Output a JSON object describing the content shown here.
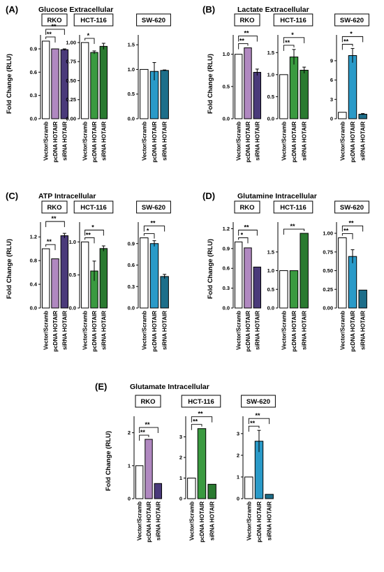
{
  "chart_data": [
    {
      "type": "bar",
      "panel": "(A)",
      "title": "Glucose Extracellular",
      "ylabel": "Fold Change (RLU)",
      "categories": [
        "Vector/Scramb",
        "pcDNA HOTAIR",
        "siRNA HOTAIR"
      ],
      "subplots": [
        {
          "name": "RKO",
          "values": [
            1.0,
            0.9,
            0.89
          ],
          "errors": [
            0,
            0,
            0.01
          ],
          "ylim": [
            0,
            1.08
          ],
          "yticks": [
            "0.0",
            "0.3",
            "0.6",
            "0.9"
          ],
          "ytick_values": [
            0.0,
            0.3,
            0.6,
            0.9
          ],
          "sig": [
            {
              "from": 0,
              "to": 1,
              "label": "**"
            },
            {
              "from": 0,
              "to": 2,
              "label": "**"
            }
          ],
          "colors": [
            "#ffffff",
            "#b088c0",
            "#4a3a7a"
          ]
        },
        {
          "name": "HCT-116",
          "values": [
            1.0,
            0.87,
            0.95
          ],
          "errors": [
            0,
            0.02,
            0.04
          ],
          "ylim": [
            0,
            1.1
          ],
          "yticks": [
            "0.00",
            "0.25",
            "0.50",
            "0.75",
            "1.00"
          ],
          "ytick_values": [
            0.0,
            0.25,
            0.5,
            0.75,
            1.0
          ],
          "sig": [
            {
              "from": 0,
              "to": 1,
              "label": "*"
            }
          ],
          "colors": [
            "#ffffff",
            "#3a9a40",
            "#2a7a30"
          ]
        },
        {
          "name": "SW-620",
          "values": [
            1.0,
            0.96,
            0.98
          ],
          "errors": [
            0,
            0.18,
            0.01
          ],
          "ylim": [
            0,
            1.7
          ],
          "yticks": [
            "0.0",
            "0.5",
            "1.0",
            "1.5"
          ],
          "ytick_values": [
            0.0,
            0.5,
            1.0,
            1.5
          ],
          "sig": [],
          "colors": [
            "#ffffff",
            "#2a9ac8",
            "#1d6e8a"
          ]
        }
      ]
    },
    {
      "type": "bar",
      "panel": "(B)",
      "title": "Lactate Extracellular",
      "ylabel": "Fold Change (RLU)",
      "categories": [
        "Vector/Scramb",
        "pcDNA HOTAIR",
        "siRNA HOTAIR"
      ],
      "subplots": [
        {
          "name": "RKO",
          "values": [
            1.0,
            1.1,
            0.72
          ],
          "errors": [
            0,
            0,
            0.05
          ],
          "ylim": [
            0,
            1.3
          ],
          "yticks": [
            "0.0",
            "0.5",
            "1.0"
          ],
          "ytick_values": [
            0.0,
            0.5,
            1.0
          ],
          "sig": [
            {
              "from": 0,
              "to": 1,
              "label": "**"
            },
            {
              "from": 0,
              "to": 2,
              "label": "**"
            }
          ],
          "colors": [
            "#ffffff",
            "#b088c0",
            "#4a3a7a"
          ]
        },
        {
          "name": "HCT-116",
          "values": [
            1.0,
            1.4,
            1.1
          ],
          "errors": [
            0,
            0.17,
            0.07
          ],
          "ylim": [
            0,
            1.9
          ],
          "yticks": [
            "0.0",
            "0.5",
            "1.0",
            "1.5"
          ],
          "ytick_values": [
            0.0,
            0.5,
            1.0,
            1.5
          ],
          "sig": [
            {
              "from": 0,
              "to": 1,
              "label": "**"
            },
            {
              "from": 0,
              "to": 2,
              "label": "*"
            }
          ],
          "colors": [
            "#ffffff",
            "#3a9a40",
            "#2a7a30"
          ]
        },
        {
          "name": "SW-620",
          "values": [
            1.0,
            9.8,
            0.7
          ],
          "errors": [
            0,
            1.1,
            0.1
          ],
          "ylim": [
            0,
            13
          ],
          "yticks": [
            "0",
            "3",
            "6",
            "9"
          ],
          "ytick_values": [
            0,
            3,
            6,
            9
          ],
          "sig": [
            {
              "from": 0,
              "to": 1,
              "label": "**"
            },
            {
              "from": 0,
              "to": 2,
              "label": "*"
            }
          ],
          "colors": [
            "#ffffff",
            "#2a9ac8",
            "#1d6e8a"
          ]
        }
      ]
    },
    {
      "type": "bar",
      "panel": "(C)",
      "title": "ATP Intracellular",
      "ylabel": "Fold Change (RLU)",
      "categories": [
        "Vector/Scramb",
        "pcDNA HOTAIR",
        "siRNA HOTAIR"
      ],
      "subplots": [
        {
          "name": "RKO",
          "values": [
            1.0,
            0.83,
            1.22
          ],
          "errors": [
            0,
            0,
            0.04
          ],
          "ylim": [
            0,
            1.45
          ],
          "yticks": [
            "0.0",
            "0.4",
            "0.8",
            "1.2"
          ],
          "ytick_values": [
            0.0,
            0.4,
            0.8,
            1.2
          ],
          "sig": [
            {
              "from": 0,
              "to": 1,
              "label": "**"
            },
            {
              "from": 0,
              "to": 2,
              "label": "**"
            }
          ],
          "colors": [
            "#ffffff",
            "#b088c0",
            "#4a3a7a"
          ]
        },
        {
          "name": "HCT-116",
          "values": [
            1.0,
            0.56,
            0.9
          ],
          "errors": [
            0,
            0.15,
            0.04
          ],
          "ylim": [
            0,
            1.3
          ],
          "yticks": [
            "0.0",
            "0.5",
            "1.0"
          ],
          "ytick_values": [
            0.0,
            0.5,
            1.0
          ],
          "sig": [
            {
              "from": 0,
              "to": 1,
              "label": "**"
            },
            {
              "from": 0,
              "to": 2,
              "label": "*"
            }
          ],
          "colors": [
            "#ffffff",
            "#3a9a40",
            "#2a7a30"
          ]
        },
        {
          "name": "SW-620",
          "values": [
            0.98,
            0.9,
            0.44
          ],
          "errors": [
            0,
            0.04,
            0.03
          ],
          "ylim": [
            0,
            1.2
          ],
          "yticks": [
            "0.0",
            "0.3",
            "0.6",
            "0.9"
          ],
          "ytick_values": [
            0.0,
            0.3,
            0.6,
            0.9
          ],
          "sig": [
            {
              "from": 0,
              "to": 1,
              "label": "*"
            },
            {
              "from": 0,
              "to": 2,
              "label": "**"
            }
          ],
          "colors": [
            "#ffffff",
            "#2a9ac8",
            "#1d6e8a"
          ]
        }
      ]
    },
    {
      "type": "bar",
      "panel": "(D)",
      "title": "Glutamine Intracellular",
      "ylabel": "Fold Change (RLU)",
      "categories": [
        "Vector/Scramb",
        "pcDNA HOTAIR",
        "siRNA HOTAIR"
      ],
      "subplots": [
        {
          "name": "RKO",
          "values": [
            1.0,
            0.91,
            0.62
          ],
          "errors": [
            0,
            0,
            0
          ],
          "ylim": [
            0,
            1.3
          ],
          "yticks": [
            "0.0",
            "0.3",
            "0.6",
            "0.9",
            "1.2"
          ],
          "ytick_values": [
            0.0,
            0.3,
            0.6,
            0.9,
            1.2
          ],
          "sig": [
            {
              "from": 0,
              "to": 1,
              "label": "*"
            },
            {
              "from": 0,
              "to": 2,
              "label": "**"
            }
          ],
          "colors": [
            "#ffffff",
            "#b088c0",
            "#4a3a7a"
          ]
        },
        {
          "name": "HCT-116",
          "values": [
            1.0,
            1.0,
            2.0
          ],
          "errors": [
            0,
            0,
            0
          ],
          "ylim": [
            0,
            2.3
          ],
          "yticks": [
            "0.0",
            "0.5",
            "1.0",
            "1.5"
          ],
          "ytick_values": [
            0.0,
            0.5,
            1.0,
            1.5
          ],
          "sig": [
            {
              "from": 0,
              "to": 2,
              "label": "**"
            }
          ],
          "colors": [
            "#ffffff",
            "#3a9a40",
            "#2a7a30"
          ]
        },
        {
          "name": "SW-620",
          "values": [
            0.94,
            0.69,
            0.24
          ],
          "errors": [
            0,
            0.09,
            0
          ],
          "ylim": [
            0,
            1.15
          ],
          "yticks": [
            "0.00",
            "0.25",
            "0.50",
            "0.75",
            "1.00"
          ],
          "ytick_values": [
            0.0,
            0.25,
            0.5,
            0.75,
            1.0
          ],
          "sig": [
            {
              "from": 0,
              "to": 1,
              "label": "**"
            },
            {
              "from": 0,
              "to": 2,
              "label": "**"
            }
          ],
          "colors": [
            "#ffffff",
            "#2a9ac8",
            "#1d6e8a"
          ]
        }
      ]
    },
    {
      "type": "bar",
      "panel": "(E)",
      "title": "Glutamate Intracellular",
      "ylabel": "Fold Change (RLU)",
      "categories": [
        "Vector/Scramb",
        "pcDNA HOTAIR",
        "siRNA HOTAIR"
      ],
      "subplots": [
        {
          "name": "RKO",
          "values": [
            1.0,
            1.8,
            0.46
          ],
          "errors": [
            0,
            0,
            0
          ],
          "ylim": [
            0,
            2.5
          ],
          "yticks": [
            "0",
            "1",
            "2"
          ],
          "ytick_values": [
            0,
            1,
            2
          ],
          "sig": [
            {
              "from": 0,
              "to": 1,
              "label": "**"
            },
            {
              "from": 0,
              "to": 2,
              "label": "**"
            }
          ],
          "colors": [
            "#ffffff",
            "#b088c0",
            "#4a3a7a"
          ]
        },
        {
          "name": "HCT-116",
          "values": [
            1.0,
            3.4,
            0.7
          ],
          "errors": [
            0,
            0,
            0
          ],
          "ylim": [
            0,
            4.0
          ],
          "yticks": [
            "0",
            "1",
            "2",
            "3"
          ],
          "ytick_values": [
            0,
            1,
            2,
            3
          ],
          "sig": [
            {
              "from": 0,
              "to": 1,
              "label": "**"
            },
            {
              "from": 0,
              "to": 2,
              "label": "**"
            }
          ],
          "colors": [
            "#ffffff",
            "#3a9a40",
            "#2a7a30"
          ]
        },
        {
          "name": "SW-620",
          "values": [
            1.0,
            2.65,
            0.2
          ],
          "errors": [
            0,
            0.5,
            0
          ],
          "ylim": [
            0,
            3.8
          ],
          "yticks": [
            "0",
            "1",
            "2",
            "3"
          ],
          "ytick_values": [
            0,
            1,
            2,
            3
          ],
          "sig": [
            {
              "from": 0,
              "to": 1,
              "label": "**"
            },
            {
              "from": 0,
              "to": 2,
              "label": "**"
            }
          ],
          "colors": [
            "#ffffff",
            "#2a9ac8",
            "#1d6e8a"
          ]
        }
      ]
    }
  ]
}
